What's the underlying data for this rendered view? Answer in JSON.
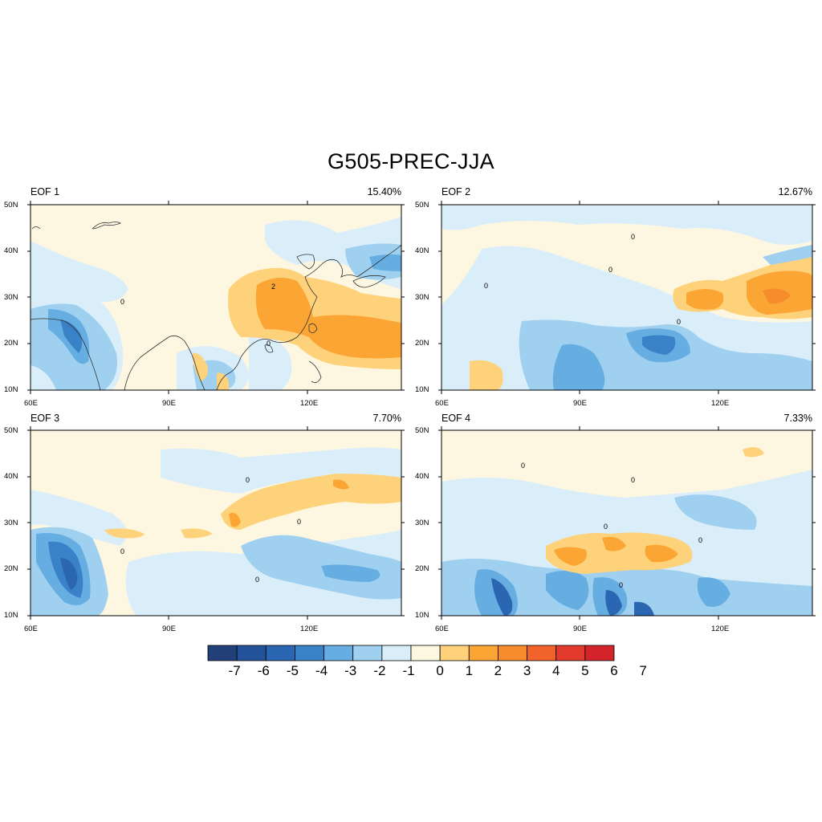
{
  "title": "G505-PREC-JJA",
  "colors": {
    "levels": [
      "#22417a",
      "#23529a",
      "#2a66b2",
      "#3a82c8",
      "#66aee2",
      "#9fd0f0",
      "#daeefa",
      "#fdf7e2",
      "#fdd27a",
      "#fba535",
      "#f78c2d",
      "#f2622b",
      "#e23b2e",
      "#d3242c"
    ],
    "coast": "#333333"
  },
  "axes": {
    "lon_ticks": [
      "60E",
      "90E",
      "120E"
    ],
    "lat_ticks": [
      "50N",
      "40N",
      "30N",
      "20N",
      "10N"
    ]
  },
  "colorbar": {
    "labels": [
      "-7",
      "-6",
      "-5",
      "-4",
      "-3",
      "-2",
      "-1",
      "0",
      "1",
      "2",
      "3",
      "4",
      "5",
      "6",
      "7"
    ]
  },
  "panels": [
    {
      "label": "EOF 1",
      "percent": "15.40%"
    },
    {
      "label": "EOF 2",
      "percent": "12.67%"
    },
    {
      "label": "EOF 3",
      "percent": "7.70%"
    },
    {
      "label": "EOF 4",
      "percent": "7.33%"
    }
  ]
}
